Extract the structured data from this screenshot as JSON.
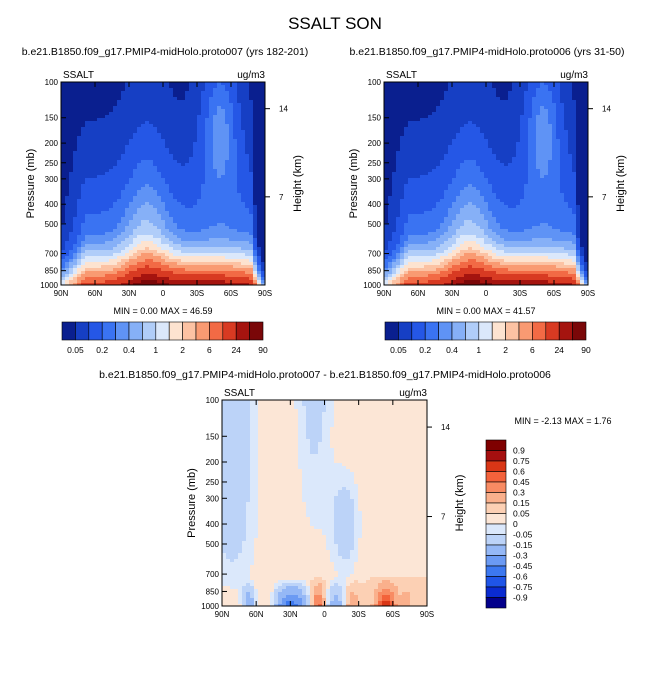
{
  "figure": {
    "title": "SSALT SON"
  },
  "palettes": {
    "abs_colors": [
      "#0a1f8f",
      "#163fc4",
      "#2557e6",
      "#3a73f2",
      "#5f93f5",
      "#86b0f7",
      "#b0cdf9",
      "#dbe8fb",
      "#fde3d0",
      "#fcc2a3",
      "#f99a72",
      "#f26a45",
      "#d83a22",
      "#a5140f",
      "#7a0708"
    ],
    "diff_colors": [
      "#03008b",
      "#0a2bd1",
      "#1f55e8",
      "#3c78f0",
      "#6b9af3",
      "#95b8f6",
      "#bcd3f8",
      "#dbe8fb",
      "#fce6d6",
      "#fcd0b4",
      "#fab08c",
      "#f88b63",
      "#f3623b",
      "#d93616",
      "#a50f0f",
      "#7f0000"
    ]
  },
  "chart_data": [
    {
      "type": "contour",
      "panel_title": "b.e21.B1850.f09_g17.PMIP4-midHolo.proto007 (yrs 182-201)",
      "var_label": "SSALT",
      "units": "ug/m3",
      "xlabel": "",
      "ylabel": "Pressure (mb)",
      "y2label": "Height (km)",
      "xticks": [
        "90N",
        "60N",
        "30N",
        "0",
        "30S",
        "60S",
        "90S"
      ],
      "yticks": [
        "100",
        "150",
        "200",
        "250",
        "300",
        "400",
        "500",
        "700",
        "850",
        "1000"
      ],
      "y2ticks": [
        "14",
        "7"
      ],
      "stats": {
        "min_label": "MIN =",
        "min": "0.00",
        "max_label": "MAX =",
        "max": "46.59"
      },
      "colorbar_labels": [
        "0.05",
        "0.2",
        "0.4",
        "1",
        "2",
        "6",
        "24",
        "90"
      ],
      "ylim": [
        100,
        1000
      ]
    },
    {
      "type": "contour",
      "panel_title": "b.e21.B1850.f09_g17.PMIP4-midHolo.proto006 (yrs 31-50)",
      "var_label": "SSALT",
      "units": "ug/m3",
      "xlabel": "",
      "ylabel": "Pressure (mb)",
      "y2label": "Height (km)",
      "xticks": [
        "90N",
        "60N",
        "30N",
        "0",
        "30S",
        "60S",
        "90S"
      ],
      "yticks": [
        "100",
        "150",
        "200",
        "250",
        "300",
        "400",
        "500",
        "700",
        "850",
        "1000"
      ],
      "y2ticks": [
        "14",
        "7"
      ],
      "stats": {
        "min_label": "MIN =",
        "min": "0.00",
        "max_label": "MAX =",
        "max": "41.57"
      },
      "colorbar_labels": [
        "0.05",
        "0.2",
        "0.4",
        "1",
        "2",
        "6",
        "24",
        "90"
      ],
      "ylim": [
        100,
        1000
      ]
    },
    {
      "type": "contour",
      "panel_title": "b.e21.B1850.f09_g17.PMIP4-midHolo.proto007 - b.e21.B1850.f09_g17.PMIP4-midHolo.proto006",
      "var_label": "SSALT",
      "units": "ug/m3",
      "xlabel": "",
      "ylabel": "Pressure (mb)",
      "y2label": "Height (km)",
      "xticks": [
        "90N",
        "60N",
        "30N",
        "0",
        "30S",
        "60S",
        "90S"
      ],
      "yticks": [
        "100",
        "150",
        "200",
        "250",
        "300",
        "400",
        "500",
        "700",
        "850",
        "1000"
      ],
      "y2ticks": [
        "14",
        "7"
      ],
      "stats": {
        "min_label": "MIN =",
        "min": "-2.13",
        "max_label": "MAX =",
        "max": "1.76"
      },
      "colorbar_labels": [
        "0.9",
        "0.75",
        "0.6",
        "0.45",
        "0.3",
        "0.15",
        "0.05",
        "0",
        "-0.05",
        "-0.15",
        "-0.3",
        "-0.45",
        "-0.6",
        "-0.75",
        "-0.9"
      ],
      "ylim": [
        100,
        1000
      ]
    }
  ]
}
